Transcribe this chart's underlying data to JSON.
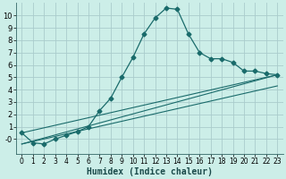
{
  "title": "",
  "xlabel": "Humidex (Indice chaleur)",
  "background_color": "#cceee8",
  "grid_color": "#aacccc",
  "line_color": "#1a6b6b",
  "xlim": [
    -0.5,
    23.5
  ],
  "ylim": [
    -1.2,
    11.0
  ],
  "yticks": [
    0,
    1,
    2,
    3,
    4,
    5,
    6,
    7,
    8,
    9,
    10
  ],
  "ytick_labels": [
    "-0",
    "1",
    "2",
    "3",
    "4",
    "5",
    "6",
    "7",
    "8",
    "9",
    "10"
  ],
  "xticks": [
    0,
    1,
    2,
    3,
    4,
    5,
    6,
    7,
    8,
    9,
    10,
    11,
    12,
    13,
    14,
    15,
    16,
    17,
    18,
    19,
    20,
    21,
    22,
    23
  ],
  "main_series": {
    "x": [
      0,
      1,
      2,
      3,
      4,
      5,
      6,
      7,
      8,
      9,
      10,
      11,
      12,
      13,
      14,
      15,
      16,
      17,
      18,
      19,
      20,
      21,
      22,
      23
    ],
    "y": [
      0.5,
      -0.3,
      -0.4,
      0.0,
      0.3,
      0.6,
      1.0,
      2.3,
      3.3,
      5.0,
      6.6,
      8.5,
      9.8,
      10.6,
      10.5,
      8.5,
      7.0,
      6.5,
      6.5,
      6.2,
      5.5,
      5.5,
      5.3,
      5.2
    ]
  },
  "ref_lines": [
    {
      "x": [
        0,
        23
      ],
      "y": [
        -0.4,
        5.2
      ]
    },
    {
      "x": [
        0,
        23
      ],
      "y": [
        -0.4,
        4.3
      ]
    },
    {
      "x": [
        0,
        23
      ],
      "y": [
        0.5,
        5.2
      ]
    }
  ]
}
